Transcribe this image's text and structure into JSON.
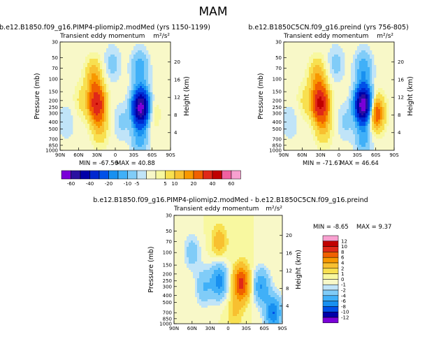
{
  "season": "MAM",
  "chart_data": [
    {
      "type": "heatmap",
      "title": "b.e12.B1850.f09_g16.PIMP4-pliomip2.modMed (yrs 1150-1199)",
      "subtitle": "Transient eddy momentum",
      "units": "m²/s²",
      "ylabel": "Pressure (mb)",
      "ylabel_right": "Height (km)",
      "x_ticks": [
        "90N",
        "60N",
        "30N",
        "0",
        "30S",
        "60S",
        "90S"
      ],
      "x_range": [
        90,
        -90
      ],
      "y_ticks": [
        30,
        50,
        70,
        100,
        150,
        200,
        250,
        300,
        400,
        500,
        700,
        850,
        1000
      ],
      "y_range": [
        1000,
        30
      ],
      "y_scale": "log",
      "height_ticks": [
        20,
        16,
        12,
        8,
        4
      ],
      "min_label": "MIN = -67.56",
      "max_label": "MAX = 40.88",
      "features": [
        {
          "lat": 35,
          "p": 90,
          "value": 14
        },
        {
          "lat": 30,
          "p": 220,
          "value": 38
        },
        {
          "lat": 25,
          "p": 500,
          "value": 10
        },
        {
          "lat": 55,
          "p": 200,
          "value": 6
        },
        {
          "lat": -42,
          "p": 250,
          "value": -67
        },
        {
          "lat": -40,
          "p": 70,
          "value": -14
        },
        {
          "lat": -40,
          "p": 700,
          "value": -12
        },
        {
          "lat": -58,
          "p": 300,
          "value": 8
        },
        {
          "lat": 5,
          "p": 60,
          "value": -7
        },
        {
          "lat": -10,
          "p": 400,
          "value": -6
        },
        {
          "lat": 80,
          "p": 400,
          "value": -5
        }
      ]
    },
    {
      "type": "heatmap",
      "title": "b.e12.B1850C5CN.f09_g16.preind (yrs 756-805)",
      "subtitle": "Transient eddy momentum",
      "units": "m²/s²",
      "ylabel": "Pressure (mb)",
      "ylabel_right": "Height (km)",
      "x_ticks": [
        "90N",
        "60N",
        "30N",
        "0",
        "30S",
        "60S",
        "90S"
      ],
      "x_range": [
        90,
        -90
      ],
      "y_ticks": [
        30,
        50,
        70,
        100,
        150,
        200,
        250,
        300,
        400,
        500,
        700,
        850,
        1000
      ],
      "y_range": [
        1000,
        30
      ],
      "y_scale": "log",
      "height_ticks": [
        20,
        16,
        12,
        8,
        4
      ],
      "min_label": "MIN = -71.67",
      "max_label": "MAX = 46.64",
      "features": [
        {
          "lat": 35,
          "p": 90,
          "value": 14
        },
        {
          "lat": 30,
          "p": 220,
          "value": 42
        },
        {
          "lat": 25,
          "p": 500,
          "value": 10
        },
        {
          "lat": 55,
          "p": 200,
          "value": 6
        },
        {
          "lat": -40,
          "p": 230,
          "value": -71
        },
        {
          "lat": -40,
          "p": 70,
          "value": -14
        },
        {
          "lat": -40,
          "p": 700,
          "value": -12
        },
        {
          "lat": -60,
          "p": 300,
          "value": 28
        },
        {
          "lat": 5,
          "p": 60,
          "value": -7
        },
        {
          "lat": -10,
          "p": 400,
          "value": -6
        },
        {
          "lat": 80,
          "p": 400,
          "value": -5
        }
      ]
    },
    {
      "type": "heatmap",
      "title": "b.e12.B1850.f09_g16.PIMP4-pliomip2.modMed - b.e12.B1850C5CN.f09_g16.preind",
      "subtitle": "Transient eddy momentum",
      "units": "m²/s²",
      "ylabel": "Pressure (mb)",
      "ylabel_right": "Height (km)",
      "x_ticks": [
        "90N",
        "60N",
        "30N",
        "0",
        "30S",
        "60S",
        "90S"
      ],
      "x_range": [
        90,
        -90
      ],
      "y_ticks": [
        30,
        50,
        70,
        100,
        150,
        200,
        250,
        300,
        400,
        500,
        700,
        850,
        1000
      ],
      "y_range": [
        1000,
        30
      ],
      "y_scale": "log",
      "height_ticks": [
        20,
        16,
        12,
        8,
        4
      ],
      "min_label": "MIN =   -8.65",
      "max_label": "MAX =   9.37",
      "features": [
        {
          "lat": -22,
          "p": 270,
          "value": 9
        },
        {
          "lat": 15,
          "p": 250,
          "value": -7
        },
        {
          "lat": 40,
          "p": 300,
          "value": -4
        },
        {
          "lat": -55,
          "p": 300,
          "value": -6
        },
        {
          "lat": -75,
          "p": 700,
          "value": -8
        },
        {
          "lat": 15,
          "p": 70,
          "value": 3
        },
        {
          "lat": 60,
          "p": 100,
          "value": -3
        },
        {
          "lat": -10,
          "p": 700,
          "value": 2
        }
      ]
    }
  ],
  "colorbar_shared": {
    "labels": [
      "-60",
      "-40",
      "-20",
      "-10",
      "-5",
      "5",
      "10",
      "20",
      "40",
      "60"
    ],
    "levels": [
      -60,
      -50,
      -40,
      -30,
      -20,
      -15,
      -10,
      -5,
      -2,
      2,
      5,
      10,
      15,
      20,
      30,
      40,
      50,
      60
    ],
    "colors": [
      "#7a00d8",
      "#2a10a0",
      "#0000a8",
      "#0028d0",
      "#0050e8",
      "#1890f0",
      "#40b0f8",
      "#80ccf8",
      "#c0e4f8",
      "#f8f8c8",
      "#f8f8a0",
      "#f8e050",
      "#f8c030",
      "#f89800",
      "#f06000",
      "#e02818",
      "#c00000",
      "#f060a0",
      "#f8a0d0"
    ]
  },
  "colorbar_diff": {
    "labels": [
      "12",
      "10",
      "8",
      "6",
      "4",
      "2",
      "1",
      "0",
      "-1",
      "-2",
      "-4",
      "-6",
      "-8",
      "-10",
      "-12"
    ],
    "colors": [
      "#f8a0d0",
      "#c00000",
      "#e02818",
      "#f06000",
      "#f89800",
      "#f8c030",
      "#f8e050",
      "#f8f8a0",
      "#f8f8c8",
      "#c0e4f8",
      "#80ccf8",
      "#40b0f8",
      "#1890f0",
      "#0050e8",
      "#0000a8",
      "#7a00d8"
    ]
  }
}
